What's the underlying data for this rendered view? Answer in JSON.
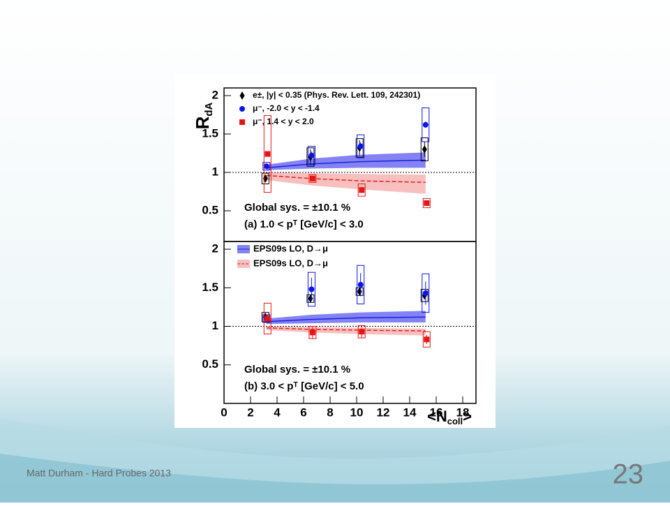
{
  "chart_data": [
    {
      "type": "scatter",
      "xlim": [
        0,
        19
      ],
      "ylim": [
        0.1,
        2.1
      ],
      "yticks": [
        0.5,
        1,
        1.5,
        2
      ],
      "hline": 1,
      "ylabel": [
        "R",
        "dA"
      ],
      "annotations": [
        "Global sys. = ±10.1 %",
        "(a) 1.0 < pᵀ [GeV/c] < 3.0"
      ],
      "x": [
        3.2,
        6.6,
        10.3,
        15.2
      ],
      "series": [
        {
          "name": "e±, |y| < 0.35 (Phys. Rev. Lett. 109, 242301)",
          "color": "#000000",
          "marker": "diamond",
          "values": [
            0.92,
            1.2,
            1.32,
            1.3
          ],
          "errors": [
            0.05,
            0.1,
            0.1,
            0.1
          ],
          "sys": [
            0.07,
            0.12,
            0.12,
            0.15
          ]
        },
        {
          "name": "μ⁻, -2.0 < y < -1.4",
          "color": "#0a14e6",
          "marker": "circle",
          "values": [
            1.08,
            1.22,
            1.34,
            1.62
          ],
          "errors": [
            0.02,
            0.05,
            0.05,
            0.04
          ],
          "sys": [
            0.05,
            0.12,
            0.15,
            0.22
          ]
        },
        {
          "name": "μ⁻, 1.4 < y < 2.0",
          "color": "#e61414",
          "marker": "square",
          "values": [
            1.24,
            0.92,
            0.77,
            0.6
          ],
          "errors": [
            0.03,
            0.03,
            0.04,
            0.03
          ],
          "sys": [
            0.5,
            0.05,
            0.08,
            0.06
          ]
        }
      ],
      "bands": [
        {
          "color": "#5a5af0",
          "dash": false,
          "central": [
            1.06,
            1.11,
            1.14,
            1.16
          ],
          "lower": [
            1.03,
            1.05,
            1.06,
            1.06
          ],
          "upper": [
            1.1,
            1.18,
            1.23,
            1.26
          ]
        },
        {
          "color": "#f07070",
          "dash": true,
          "central": [
            0.96,
            0.92,
            0.89,
            0.87
          ],
          "lower": [
            0.9,
            0.83,
            0.78,
            0.72
          ],
          "upper": [
            1.0,
            0.99,
            0.98,
            0.97
          ]
        }
      ]
    },
    {
      "type": "scatter",
      "xlim": [
        0,
        19
      ],
      "ylim": [
        0,
        2.1
      ],
      "yticks": [
        0.5,
        1,
        1.5,
        2
      ],
      "hline": 1,
      "xticks": [
        0,
        2,
        4,
        6,
        8,
        10,
        12,
        14,
        16,
        18
      ],
      "xlabel": [
        "<N",
        "coll",
        ">"
      ],
      "annotations": [
        "Global sys. = ±10.1 %",
        "(b) 3.0 < pᵀ [GeV/c] < 5.0"
      ],
      "x": [
        3.2,
        6.6,
        10.3,
        15.2
      ],
      "series": [
        {
          "color": "#000000",
          "marker": "diamond",
          "values": [
            1.12,
            1.36,
            1.45,
            1.4
          ],
          "errors": [
            0.05,
            0.05,
            0.05,
            0.05
          ],
          "sys": [
            0.06,
            0.05,
            0.05,
            0.08
          ]
        },
        {
          "color": "#0a14e6",
          "marker": "circle",
          "values": [
            1.1,
            1.48,
            1.54,
            1.43
          ],
          "errors": [
            0.04,
            0.15,
            0.15,
            0.15
          ],
          "sys": [
            0.05,
            0.22,
            0.25,
            0.25
          ]
        },
        {
          "color": "#e61414",
          "marker": "square",
          "values": [
            1.1,
            0.92,
            0.93,
            0.83
          ],
          "errors": [
            0.05,
            0.08,
            0.08,
            0.06
          ],
          "sys": [
            0.2,
            0.08,
            0.08,
            0.1
          ]
        }
      ],
      "bands": [
        {
          "name": "EPS09s LO, D→μ",
          "color": "#5a5af0",
          "dash": false,
          "central": [
            1.06,
            1.09,
            1.11,
            1.12
          ],
          "lower": [
            1.03,
            1.04,
            1.05,
            1.05
          ],
          "upper": [
            1.1,
            1.15,
            1.18,
            1.2
          ]
        },
        {
          "name": "EPS09s LO, D→μ",
          "color": "#f07070",
          "dash": true,
          "central": [
            0.98,
            0.96,
            0.95,
            0.94
          ],
          "lower": [
            0.95,
            0.92,
            0.9,
            0.88
          ],
          "upper": [
            1.0,
            0.99,
            0.98,
            0.97
          ]
        }
      ]
    }
  ],
  "footer": {
    "text": "Matt Durham - Hard Probes 2013",
    "page": "23"
  }
}
